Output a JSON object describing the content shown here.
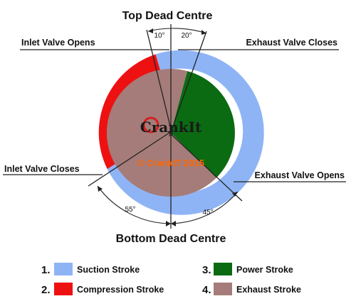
{
  "titles": {
    "top": "Top Dead Centre",
    "bottom": "Bottom Dead Centre"
  },
  "valve_events": {
    "inlet_opens": "Inlet Valve Opens",
    "exhaust_closes": "Exhaust Valve Closes",
    "inlet_closes": "Inlet Valve Closes",
    "exhaust_opens": "Exhaust Valve Opens"
  },
  "angles": {
    "inlet_opens_btdc": "10°",
    "exhaust_closes_atdc": "20°",
    "inlet_closes_abdc": "55°",
    "exhaust_opens_bbdc": "45°"
  },
  "logo": {
    "text": "CrankIt",
    "copyright": "© CrankIT 2015"
  },
  "legend": [
    {
      "number": "1.",
      "label": "Suction Stroke",
      "color": "#8fb4f5"
    },
    {
      "number": "2.",
      "label": "Compression Stroke",
      "color": "#ee1111"
    },
    {
      "number": "3.",
      "label": "Power Stroke",
      "color": "#0b6b12"
    },
    {
      "number": "4.",
      "label": "Exhaust Stroke",
      "color": "#a57c79"
    }
  ],
  "colors": {
    "suction": "#8fb4f5",
    "compression": "#ee1111",
    "power": "#0b6b12",
    "exhaust": "#a57c79",
    "copyright_text": "#ff6600"
  }
}
